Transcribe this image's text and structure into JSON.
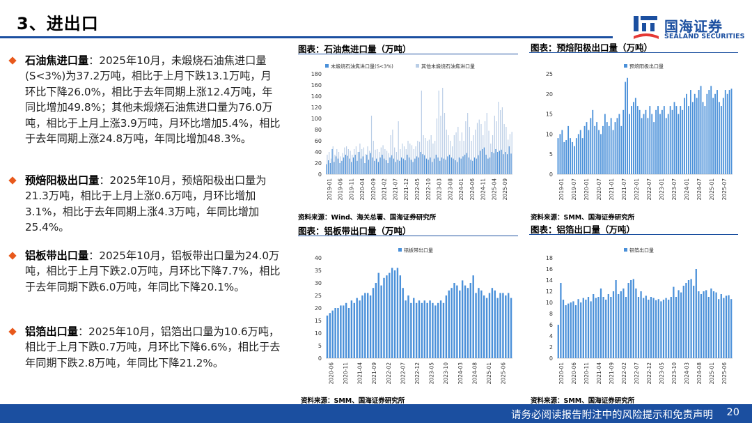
{
  "title": "3、进出口",
  "logo": {
    "name_cn": "国海证券",
    "name_en": "SEALAND SECURITIES"
  },
  "bullets": [
    {
      "heading": "石油焦进口量",
      "text": "：2025年10月，未煅烧石油焦进口量(S<3%)为37.2万吨，相比于上月下跌13.1万吨，月环比下降26.0%，相比于去年同期上涨12.4万吨，年同比增加49.8%；其他未煅烧石油焦进口量为76.0万吨，相比于上月上涨3.9万吨，月环比增加5.4%，相比于去年同期上涨24.8万吨，年同比增加48.3%。"
    },
    {
      "heading": "预焙阳极出口量",
      "text": "：2025年10月，预焙阳极出口量为21.3万吨，相比于上月上涨0.6万吨，月环比增加3.1%，相比于去年同期上涨4.3万吨，年同比增加25.4%。"
    },
    {
      "heading": "铝板带出口量",
      "text": "：2025年10月，铝板带出口量为24.0万吨，相比于上月下跌2.0万吨，月环比下降7.7%，相比于去年同期下跌6.0万吨，年同比下降20.1%。"
    },
    {
      "heading": "铝箔出口量",
      "text": "：2025年10月，铝箔出口量为10.6万吨，相比于上月下跌0.7万吨，月环比下降6.6%，相比于去年同期下跌2.8万吨，年同比下降21.2%。"
    }
  ],
  "colors": {
    "bar_dark": "#4a90d9",
    "bar_light": "#b9cde6",
    "accent": "#1b4fa0",
    "bullet": "#e8591c"
  },
  "footer": {
    "notice": "请务必阅读报告附注中的风险提示和免责声明",
    "page": "20"
  },
  "chart_data": [
    {
      "type": "bar",
      "title": "图表：石油焦进口量（万吨）",
      "source": "资料来源：Wind、海关总署、国海证券研究所",
      "x_ticks": [
        "2019-01",
        "2019-06",
        "2019-11",
        "2020-04",
        "2020-09",
        "2021-02",
        "2021-07",
        "2021-12",
        "2022-05",
        "2022-10",
        "2023-03",
        "2023-08",
        "2024-01",
        "2024-06",
        "2024-11",
        "2025-04",
        "2025-09"
      ],
      "ylim": [
        0,
        180
      ],
      "y_ticks": [
        0,
        20,
        40,
        60,
        80,
        100,
        120,
        140,
        160,
        180
      ],
      "series": [
        {
          "name": "未煅烧石油焦进口量(S<3%)",
          "color": "#4a90d9",
          "values": [
            18,
            25,
            20,
            45,
            22,
            32,
            28,
            20,
            24,
            30,
            35,
            33,
            28,
            22,
            30,
            35,
            24,
            40,
            28,
            32,
            20,
            35,
            26,
            38,
            30,
            24,
            28,
            22,
            30,
            35,
            28,
            25,
            20,
            30,
            34,
            28,
            22,
            26,
            24,
            30,
            28,
            25,
            35,
            30,
            26,
            22,
            28,
            32,
            30,
            40,
            36,
            34,
            28,
            26,
            30,
            22,
            28,
            35,
            30,
            24,
            30,
            28,
            26,
            32,
            35,
            30,
            28,
            25,
            22,
            30,
            28,
            32,
            35,
            38,
            30,
            26,
            24,
            30,
            28,
            34,
            42,
            45,
            48,
            35,
            28,
            30,
            40,
            38,
            45,
            40,
            42,
            44,
            36,
            40,
            36,
            50,
            37
          ]
        },
        {
          "name": "其他未煅烧石油焦进口量",
          "color": "#b9cde6",
          "values": [
            35,
            40,
            28,
            50,
            35,
            45,
            40,
            32,
            38,
            48,
            50,
            45,
            42,
            35,
            45,
            50,
            40,
            55,
            45,
            48,
            36,
            50,
            42,
            105,
            60,
            44,
            45,
            40,
            48,
            52,
            45,
            42,
            38,
            70,
            80,
            48,
            40,
            95,
            45,
            55,
            50,
            45,
            60,
            55,
            52,
            45,
            50,
            60,
            58,
            150,
            70,
            65,
            60,
            62,
            70,
            55,
            60,
            100,
            150,
            105,
            155,
            110,
            80,
            70,
            60,
            50,
            70,
            75,
            85,
            60,
            75,
            60,
            95,
            110,
            85,
            60,
            70,
            80,
            92,
            98,
            90,
            70,
            95,
            110,
            78,
            55,
            70,
            105,
            95,
            130,
            115,
            120,
            90,
            85,
            62,
            72,
            76
          ]
        }
      ]
    },
    {
      "type": "bar",
      "title": "图表：预焙阳极出口量（万吨）",
      "source": "资料来源：SMM、国海证券研究所",
      "x_ticks": [
        "2019-01",
        "2019-07",
        "2020-01",
        "2020-07",
        "2021-01",
        "2021-07",
        "2022-01",
        "2022-07",
        "2023-01",
        "2023-07",
        "2024-01",
        "2024-07",
        "2025-01",
        "2025-07"
      ],
      "ylim": [
        0,
        25
      ],
      "y_ticks": [
        0,
        5,
        10,
        15,
        20,
        25
      ],
      "series": [
        {
          "name": "预焙阳极出口量",
          "color": "#4a90d9",
          "values": [
            9,
            10,
            11,
            8,
            8.5,
            12,
            9,
            8,
            7,
            9,
            10,
            11,
            9,
            12,
            13,
            11,
            14,
            16,
            12,
            13,
            11,
            10,
            12,
            15,
            13,
            12,
            14,
            11,
            13,
            14,
            15,
            12,
            16,
            23,
            24,
            15,
            17,
            18,
            19,
            17,
            16,
            14,
            15,
            16,
            14,
            17,
            15,
            13,
            16,
            17,
            15,
            16,
            17,
            14,
            15,
            17,
            16,
            18,
            17,
            15,
            17,
            16,
            19,
            20,
            17,
            21,
            18,
            20,
            19,
            21,
            22,
            18,
            17,
            20,
            21,
            22,
            19,
            20,
            21,
            18,
            17,
            19,
            21,
            20,
            21,
            21.3
          ]
        }
      ]
    },
    {
      "type": "bar",
      "title": "图表：铝板带出口量（万吨）",
      "source": "资料来源：SMM、国海证券研究所",
      "x_ticks": [
        "2020-06",
        "2020-11",
        "2021-04",
        "2021-09",
        "2022-02",
        "2022-07",
        "2022-12",
        "2023-05",
        "2023-10",
        "2024-03",
        "2024-08",
        "2025-01",
        "2025-06"
      ],
      "ylim": [
        0,
        40
      ],
      "y_ticks": [
        0,
        5,
        10,
        15,
        20,
        25,
        30,
        35,
        40
      ],
      "series": [
        {
          "name": "铝板带出口量",
          "color": "#4a90d9",
          "values": [
            17,
            18,
            19,
            20,
            20,
            21,
            21,
            22,
            20,
            23,
            22,
            24,
            23,
            25,
            26,
            26,
            25,
            28,
            30,
            34,
            29,
            32,
            33,
            34,
            36,
            35,
            36,
            33,
            28,
            23,
            25,
            22,
            24,
            22,
            23,
            22,
            23,
            22,
            23,
            22,
            21,
            22,
            23,
            22,
            25,
            27,
            28,
            30,
            29,
            27,
            31,
            29,
            28,
            30,
            33,
            26,
            28,
            27,
            25,
            24,
            26,
            28,
            27,
            24,
            26,
            26,
            25,
            26,
            24
          ]
        }
      ]
    },
    {
      "type": "bar",
      "title": "图表：铝箔出口量（万吨）",
      "source": "资料来源：SMM、国海证券研究所",
      "x_ticks": [
        "2020-01",
        "2020-06",
        "2020-11",
        "2021-04",
        "2021-09",
        "2022-02",
        "2022-07",
        "2022-12",
        "2023-05",
        "2023-10",
        "2024-03",
        "2024-08",
        "2025-01",
        "2025-06"
      ],
      "ylim": [
        0,
        18
      ],
      "y_ticks": [
        0,
        2,
        4,
        6,
        8,
        10,
        12,
        14,
        16,
        18
      ],
      "series": [
        {
          "name": "铝箔出口量",
          "color": "#4a90d9",
          "values": [
            6,
            13.5,
            10.5,
            9.5,
            9.8,
            10,
            10.2,
            9.5,
            10.6,
            10,
            10.8,
            10.5,
            11,
            10.2,
            11.5,
            10.8,
            11,
            12.5,
            11,
            10.5,
            11.5,
            11,
            12,
            14,
            11.5,
            12,
            12.5,
            11,
            13.5,
            14,
            14.2,
            12.5,
            11,
            12,
            10.8,
            11.2,
            10.5,
            11,
            10.8,
            10.4,
            10.6,
            10.2,
            10.5,
            10.8,
            10.5,
            11,
            12.8,
            11,
            12.2,
            11.8,
            13,
            13.5,
            14,
            14.2,
            13,
            16,
            12,
            11.5,
            12,
            12.2,
            11,
            12.5,
            12,
            11.8,
            10.6,
            11.5,
            10.8,
            11.2,
            11.3,
            10.6
          ]
        }
      ]
    }
  ]
}
